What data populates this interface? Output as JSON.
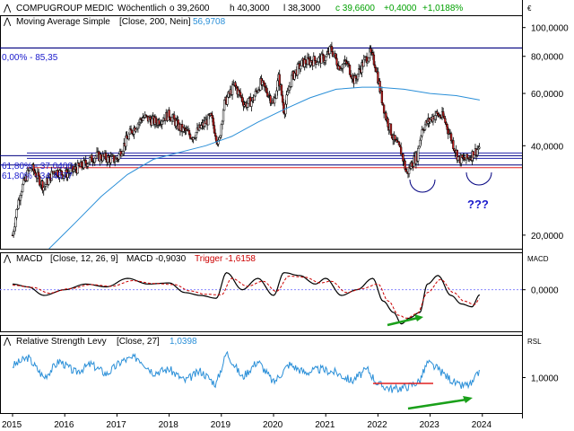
{
  "colors": {
    "background": "#ffffff",
    "border": "#000000",
    "axis_text": "#000000",
    "candle_up": "#ffffff",
    "candle_down": "#cc2020",
    "sma": "#2a8fd8",
    "macd": "#000000",
    "trigger": "#cc0000",
    "rsl": "#2a8fd8",
    "blue_label": "#1a1acc",
    "green_value": "#00a000",
    "green_arrow": "#1aa01a",
    "navy_line": "#000080",
    "horiz_band": "#2222aa",
    "red_level": "#e02020",
    "zero_line": "#8888ff"
  },
  "header": {
    "symbol": "COMPUGROUP MEDIC",
    "period": "Wöchentlich",
    "open": "o 39,2600",
    "high": "h 40,3000",
    "low": "l 38,3000",
    "close": "c 39,6600",
    "change": "+0,4000",
    "change_pct": "+1,0188%",
    "currency": "€"
  },
  "sma_label": {
    "text": "Moving Average Simple",
    "params": "[Close, 200, Nein]",
    "value": "56,9708"
  },
  "fib_labels": {
    "top": "0,00% - 85,35",
    "a1": "61,80% - 37,0400",
    "a2": "61,80% - 34,4577"
  },
  "question": "???",
  "macd_label": {
    "text": "MACD",
    "params": "[Close, 12, 26, 9]",
    "macd": "MACD -0,9030",
    "trigger": "Trigger -1,6158",
    "tag": "MACD"
  },
  "rsl_label": {
    "text": "Relative Strength Levy",
    "params": "[Close, 27]",
    "value": "1,0398",
    "tag": "RSL"
  },
  "chart_data": [
    {
      "type": "candlestick",
      "title": "COMPUGROUP MEDIC",
      "x_labels": [
        "2015",
        "2016",
        "2017",
        "2018",
        "2019",
        "2020",
        "2021",
        "2022",
        "2023",
        "2024"
      ],
      "y_scale": "log",
      "ylim": [
        18,
        110
      ],
      "y_ticks": [
        {
          "v": 100,
          "label": "100,0000"
        },
        {
          "v": 80,
          "label": "80,0000"
        },
        {
          "v": 60,
          "label": "60,0000"
        },
        {
          "v": 40,
          "label": "40,0000"
        },
        {
          "v": 20,
          "label": "20,0000"
        }
      ],
      "close_series": [
        [
          2015.0,
          20
        ],
        [
          2015.15,
          28
        ],
        [
          2015.35,
          34
        ],
        [
          2015.6,
          29
        ],
        [
          2015.8,
          33
        ],
        [
          2016.0,
          32
        ],
        [
          2016.3,
          34
        ],
        [
          2016.6,
          37
        ],
        [
          2016.9,
          36
        ],
        [
          2017.0,
          36
        ],
        [
          2017.25,
          44
        ],
        [
          2017.5,
          50
        ],
        [
          2017.75,
          48
        ],
        [
          2018.0,
          51
        ],
        [
          2018.2,
          46
        ],
        [
          2018.45,
          43
        ],
        [
          2018.65,
          47
        ],
        [
          2018.8,
          50
        ],
        [
          2018.95,
          40
        ],
        [
          2019.05,
          55
        ],
        [
          2019.25,
          64
        ],
        [
          2019.45,
          55
        ],
        [
          2019.6,
          57
        ],
        [
          2019.75,
          65
        ],
        [
          2019.9,
          60
        ],
        [
          2020.0,
          55
        ],
        [
          2020.1,
          68
        ],
        [
          2020.2,
          52
        ],
        [
          2020.35,
          68
        ],
        [
          2020.55,
          76
        ],
        [
          2020.7,
          77
        ],
        [
          2020.85,
          78
        ],
        [
          2021.0,
          79
        ],
        [
          2021.1,
          85
        ],
        [
          2021.25,
          74
        ],
        [
          2021.4,
          76
        ],
        [
          2021.55,
          66
        ],
        [
          2021.7,
          75
        ],
        [
          2021.85,
          82
        ],
        [
          2021.95,
          75
        ],
        [
          2022.05,
          60
        ],
        [
          2022.15,
          50
        ],
        [
          2022.3,
          42
        ],
        [
          2022.45,
          38
        ],
        [
          2022.55,
          32
        ],
        [
          2022.65,
          35
        ],
        [
          2022.75,
          37
        ],
        [
          2022.85,
          46
        ],
        [
          2022.95,
          48
        ],
        [
          2023.1,
          51
        ],
        [
          2023.25,
          50
        ],
        [
          2023.35,
          45
        ],
        [
          2023.45,
          40
        ],
        [
          2023.55,
          36
        ],
        [
          2023.7,
          36
        ],
        [
          2023.85,
          38
        ],
        [
          2023.95,
          39.66
        ]
      ],
      "sma200": [
        [
          2015.7,
          18
        ],
        [
          2016.2,
          22
        ],
        [
          2016.7,
          27
        ],
        [
          2017.2,
          32
        ],
        [
          2017.7,
          36
        ],
        [
          2018.2,
          38
        ],
        [
          2018.7,
          40
        ],
        [
          2019.2,
          43
        ],
        [
          2019.7,
          48
        ],
        [
          2020.2,
          53
        ],
        [
          2020.7,
          58
        ],
        [
          2021.2,
          62
        ],
        [
          2021.7,
          63
        ],
        [
          2022.0,
          63
        ],
        [
          2022.5,
          62
        ],
        [
          2023.0,
          60
        ],
        [
          2023.5,
          59
        ],
        [
          2023.95,
          57
        ]
      ],
      "levels": [
        {
          "name": "fib-0",
          "value": 85.35
        },
        {
          "name": "fib-61.8-a",
          "value": 37.04
        },
        {
          "name": "fib-61.8-b",
          "value": 34.4577
        }
      ]
    },
    {
      "type": "line",
      "title": "MACD",
      "y_ticks": [
        {
          "v": 0,
          "label": "0,0000"
        }
      ],
      "ylim": [
        -7,
        5
      ],
      "series": [
        {
          "name": "MACD",
          "values": [
            [
              2015.0,
              1
            ],
            [
              2015.3,
              0.5
            ],
            [
              2015.6,
              -1
            ],
            [
              2016.0,
              0
            ],
            [
              2016.4,
              1
            ],
            [
              2016.8,
              0.5
            ],
            [
              2017.2,
              2
            ],
            [
              2017.6,
              1
            ],
            [
              2018.0,
              1.2
            ],
            [
              2018.3,
              -0.5
            ],
            [
              2018.6,
              -1
            ],
            [
              2018.9,
              -1.5
            ],
            [
              2019.1,
              3
            ],
            [
              2019.4,
              0
            ],
            [
              2019.7,
              2
            ],
            [
              2020.0,
              -1
            ],
            [
              2020.2,
              3
            ],
            [
              2020.5,
              2.5
            ],
            [
              2020.8,
              1
            ],
            [
              2021.0,
              2
            ],
            [
              2021.3,
              -1
            ],
            [
              2021.6,
              0
            ],
            [
              2021.9,
              2
            ],
            [
              2022.1,
              -2
            ],
            [
              2022.3,
              -4
            ],
            [
              2022.45,
              -6
            ],
            [
              2022.6,
              -5
            ],
            [
              2022.8,
              -4
            ],
            [
              2022.95,
              1
            ],
            [
              2023.15,
              2.5
            ],
            [
              2023.4,
              -1
            ],
            [
              2023.6,
              -2.5
            ],
            [
              2023.8,
              -3
            ],
            [
              2023.95,
              -0.9
            ]
          ]
        },
        {
          "name": "Trigger",
          "values": [
            [
              2015.0,
              0.8
            ],
            [
              2015.4,
              0.4
            ],
            [
              2015.7,
              -0.6
            ],
            [
              2016.1,
              0.2
            ],
            [
              2016.5,
              0.9
            ],
            [
              2016.9,
              0.6
            ],
            [
              2017.3,
              1.6
            ],
            [
              2017.7,
              1.1
            ],
            [
              2018.1,
              0.9
            ],
            [
              2018.4,
              -0.2
            ],
            [
              2018.7,
              -0.8
            ],
            [
              2019.0,
              -0.9
            ],
            [
              2019.2,
              2
            ],
            [
              2019.5,
              0.6
            ],
            [
              2019.8,
              1.5
            ],
            [
              2020.05,
              -0.3
            ],
            [
              2020.3,
              2.4
            ],
            [
              2020.6,
              2.2
            ],
            [
              2020.9,
              1.2
            ],
            [
              2021.1,
              1.5
            ],
            [
              2021.4,
              -0.5
            ],
            [
              2021.7,
              0.2
            ],
            [
              2022.0,
              1
            ],
            [
              2022.2,
              -2
            ],
            [
              2022.4,
              -4.5
            ],
            [
              2022.55,
              -5
            ],
            [
              2022.75,
              -4.2
            ],
            [
              2022.95,
              -0.5
            ],
            [
              2023.2,
              1.8
            ],
            [
              2023.45,
              -0.5
            ],
            [
              2023.65,
              -2
            ],
            [
              2023.85,
              -2.6
            ],
            [
              2023.95,
              -1.6
            ]
          ]
        }
      ]
    },
    {
      "type": "line",
      "title": "Relative Strength Levy",
      "y_ticks": [
        {
          "v": 1,
          "label": "1,0000"
        }
      ],
      "ylim": [
        0.8,
        1.2
      ],
      "series": [
        {
          "name": "Relative Strength Levy",
          "values": [
            [
              2015.0,
              1.07
            ],
            [
              2015.3,
              1.12
            ],
            [
              2015.6,
              1.0
            ],
            [
              2015.9,
              1.1
            ],
            [
              2016.2,
              1.03
            ],
            [
              2016.5,
              1.08
            ],
            [
              2016.8,
              1.02
            ],
            [
              2017.1,
              1.1
            ],
            [
              2017.4,
              1.12
            ],
            [
              2017.7,
              1.03
            ],
            [
              2018.0,
              1.05
            ],
            [
              2018.3,
              0.98
            ],
            [
              2018.6,
              1.04
            ],
            [
              2018.9,
              0.96
            ],
            [
              2019.1,
              1.15
            ],
            [
              2019.4,
              1.0
            ],
            [
              2019.7,
              1.1
            ],
            [
              2020.0,
              0.97
            ],
            [
              2020.3,
              1.08
            ],
            [
              2020.6,
              1.03
            ],
            [
              2020.9,
              1.05
            ],
            [
              2021.2,
              1.03
            ],
            [
              2021.5,
              0.98
            ],
            [
              2021.8,
              1.05
            ],
            [
              2022.0,
              0.96
            ],
            [
              2022.3,
              0.93
            ],
            [
              2022.6,
              0.95
            ],
            [
              2022.8,
              0.98
            ],
            [
              2022.95,
              1.09
            ],
            [
              2023.15,
              1.05
            ],
            [
              2023.35,
              1.0
            ],
            [
              2023.55,
              0.95
            ],
            [
              2023.8,
              0.96
            ],
            [
              2023.95,
              1.04
            ]
          ]
        }
      ]
    }
  ]
}
